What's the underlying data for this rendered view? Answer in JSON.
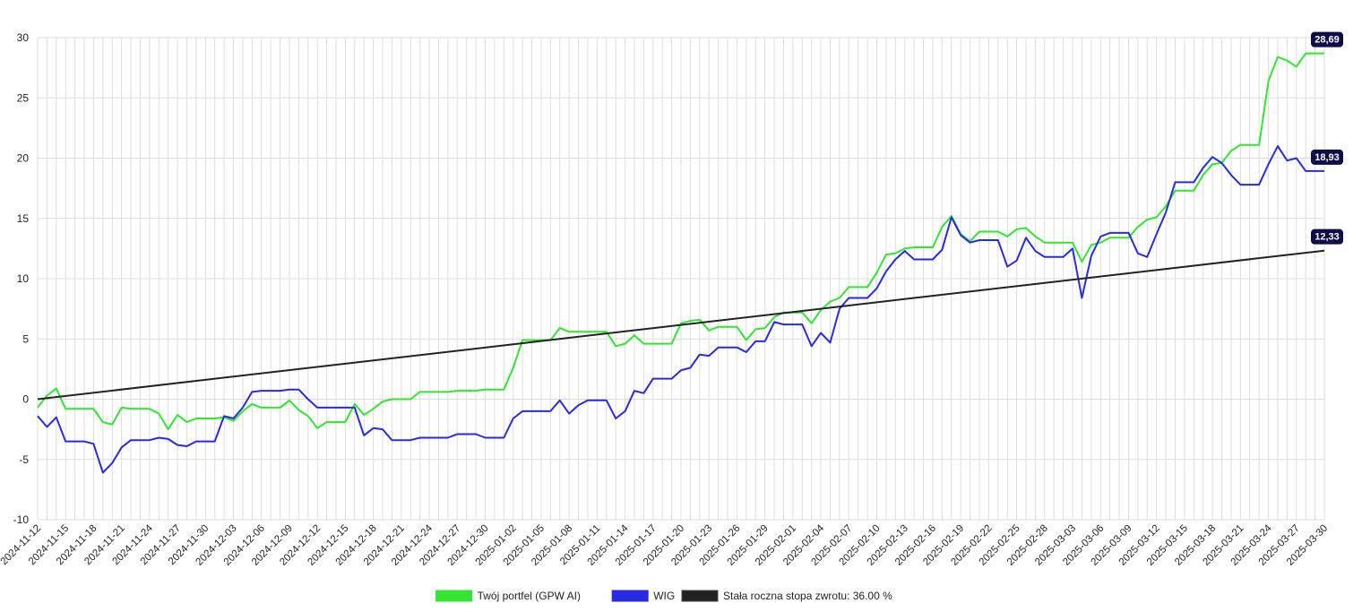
{
  "chart_data": {
    "type": "line",
    "title": "",
    "xlabel": "",
    "ylabel": "",
    "ylim": [
      -10,
      30
    ],
    "y_ticks": [
      -10,
      -5,
      0,
      5,
      10,
      15,
      20,
      25,
      30
    ],
    "y_tick_labels": [
      "-10",
      "-5",
      "0",
      "5",
      "10",
      "15",
      "20",
      "25",
      "30"
    ],
    "x_range": [
      "2024-11-12",
      "2025-03-30"
    ],
    "x_tick_labels": [
      "2024-11-12",
      "2024-11-15",
      "2024-11-18",
      "2024-11-21",
      "2024-11-24",
      "2024-11-27",
      "2024-11-30",
      "2024-12-03",
      "2024-12-06",
      "2024-12-09",
      "2024-12-12",
      "2024-12-15",
      "2024-12-18",
      "2024-12-21",
      "2024-12-24",
      "2024-12-27",
      "2024-12-30",
      "2025-01-02",
      "2025-01-05",
      "2025-01-08",
      "2025-01-11",
      "2025-01-14",
      "2025-01-17",
      "2025-01-20",
      "2025-01-23",
      "2025-01-26",
      "2025-01-29",
      "2025-02-01",
      "2025-02-04",
      "2025-02-07",
      "2025-02-10",
      "2025-02-13",
      "2025-02-16",
      "2025-02-19",
      "2025-02-22",
      "2025-02-25",
      "2025-02-28",
      "2025-03-03",
      "2025-03-06",
      "2025-03-09",
      "2025-03-12",
      "2025-03-15",
      "2025-03-18",
      "2025-03-21",
      "2025-03-24",
      "2025-03-27",
      "2025-03-30"
    ],
    "grid": true,
    "legend_position": "bottom",
    "series": [
      {
        "name": "Twój portfel (GPW AI)",
        "color": "#33e433",
        "end_label": "28,69",
        "x": [
          "2024-11-12",
          "2024-11-13",
          "2024-11-14",
          "2024-11-15",
          "2024-11-16",
          "2024-11-17",
          "2024-11-18",
          "2024-11-19",
          "2024-11-20",
          "2024-11-21",
          "2024-11-22",
          "2024-11-23",
          "2024-11-24",
          "2024-11-25",
          "2024-11-26",
          "2024-11-27",
          "2024-11-28",
          "2024-11-29",
          "2024-11-30",
          "2024-12-01",
          "2024-12-02",
          "2024-12-03",
          "2024-12-04",
          "2024-12-05",
          "2024-12-06",
          "2024-12-07",
          "2024-12-08",
          "2024-12-09",
          "2024-12-10",
          "2024-12-11",
          "2024-12-12",
          "2024-12-13",
          "2024-12-14",
          "2024-12-15",
          "2024-12-16",
          "2024-12-17",
          "2024-12-18",
          "2024-12-19",
          "2024-12-20",
          "2024-12-21",
          "2024-12-22",
          "2024-12-23",
          "2024-12-24",
          "2024-12-25",
          "2024-12-26",
          "2024-12-27",
          "2024-12-28",
          "2024-12-29",
          "2024-12-30",
          "2024-12-31",
          "2025-01-01",
          "2025-01-02",
          "2025-01-03",
          "2025-01-04",
          "2025-01-05",
          "2025-01-06",
          "2025-01-07",
          "2025-01-08",
          "2025-01-09",
          "2025-01-10",
          "2025-01-11",
          "2025-01-12",
          "2025-01-13",
          "2025-01-14",
          "2025-01-15",
          "2025-01-16",
          "2025-01-17",
          "2025-01-18",
          "2025-01-19",
          "2025-01-20",
          "2025-01-21",
          "2025-01-22",
          "2025-01-23",
          "2025-01-24",
          "2025-01-25",
          "2025-01-26",
          "2025-01-27",
          "2025-01-28",
          "2025-01-29",
          "2025-01-30",
          "2025-01-31",
          "2025-02-01",
          "2025-02-02",
          "2025-02-03",
          "2025-02-04",
          "2025-02-05",
          "2025-02-06",
          "2025-02-07",
          "2025-02-08",
          "2025-02-09",
          "2025-02-10",
          "2025-02-11",
          "2025-02-12",
          "2025-02-13",
          "2025-02-14",
          "2025-02-15",
          "2025-02-16",
          "2025-02-17",
          "2025-02-18",
          "2025-02-19",
          "2025-02-20",
          "2025-02-21",
          "2025-02-22",
          "2025-02-23",
          "2025-02-24",
          "2025-02-25",
          "2025-02-26",
          "2025-02-27",
          "2025-02-28",
          "2025-03-01",
          "2025-03-02",
          "2025-03-03",
          "2025-03-04",
          "2025-03-05",
          "2025-03-06",
          "2025-03-07",
          "2025-03-08",
          "2025-03-09",
          "2025-03-10",
          "2025-03-11",
          "2025-03-12",
          "2025-03-13",
          "2025-03-14",
          "2025-03-15",
          "2025-03-16",
          "2025-03-17",
          "2025-03-18",
          "2025-03-19",
          "2025-03-20",
          "2025-03-21",
          "2025-03-22",
          "2025-03-23",
          "2025-03-24",
          "2025-03-25",
          "2025-03-26",
          "2025-03-27",
          "2025-03-28",
          "2025-03-29",
          "2025-03-30"
        ],
        "y": [
          -0.7,
          0.3,
          0.9,
          -0.8,
          -0.8,
          -0.8,
          -0.8,
          -1.9,
          -2.1,
          -0.7,
          -0.8,
          -0.8,
          -0.8,
          -1.2,
          -2.5,
          -1.3,
          -1.9,
          -1.6,
          -1.6,
          -1.6,
          -1.5,
          -1.8,
          -1.0,
          -0.4,
          -0.7,
          -0.7,
          -0.7,
          -0.1,
          -0.9,
          -1.4,
          -2.4,
          -1.9,
          -1.9,
          -1.9,
          -0.4,
          -1.3,
          -0.8,
          -0.2,
          0.0,
          0.0,
          0.0,
          0.6,
          0.6,
          0.6,
          0.6,
          0.7,
          0.7,
          0.7,
          0.8,
          0.8,
          0.8,
          2.6,
          4.9,
          4.9,
          4.9,
          4.9,
          5.9,
          5.6,
          5.6,
          5.6,
          5.6,
          5.6,
          4.4,
          4.6,
          5.3,
          4.6,
          4.6,
          4.6,
          4.6,
          6.3,
          6.5,
          6.6,
          5.7,
          6.0,
          6.0,
          6.0,
          4.9,
          5.8,
          5.9,
          6.8,
          7.2,
          7.2,
          7.2,
          6.3,
          7.4,
          8.1,
          8.4,
          9.3,
          9.3,
          9.3,
          10.5,
          12.0,
          12.1,
          12.5,
          12.6,
          12.6,
          12.6,
          14.3,
          15.2,
          13.7,
          13.1,
          13.9,
          13.9,
          13.9,
          13.5,
          14.1,
          14.2,
          13.5,
          13.0,
          13.0,
          13.0,
          13.0,
          11.4,
          12.8,
          13.0,
          13.4,
          13.4,
          13.4,
          14.3,
          14.9,
          15.1,
          16.0,
          17.3,
          17.3,
          17.3,
          18.6,
          19.5,
          19.6,
          20.6,
          21.1,
          21.1,
          21.1,
          26.4,
          28.4,
          28.1,
          27.6,
          28.69,
          28.69,
          28.69
        ]
      },
      {
        "name": "WIG",
        "color": "#2a2ae0",
        "end_label": "18,93",
        "x": [
          "2024-11-12",
          "2024-11-13",
          "2024-11-14",
          "2024-11-15",
          "2024-11-16",
          "2024-11-17",
          "2024-11-18",
          "2024-11-19",
          "2024-11-20",
          "2024-11-21",
          "2024-11-22",
          "2024-11-23",
          "2024-11-24",
          "2024-11-25",
          "2024-11-26",
          "2024-11-27",
          "2024-11-28",
          "2024-11-29",
          "2024-11-30",
          "2024-12-01",
          "2024-12-02",
          "2024-12-03",
          "2024-12-04",
          "2024-12-05",
          "2024-12-06",
          "2024-12-07",
          "2024-12-08",
          "2024-12-09",
          "2024-12-10",
          "2024-12-11",
          "2024-12-12",
          "2024-12-13",
          "2024-12-14",
          "2024-12-15",
          "2024-12-16",
          "2024-12-17",
          "2024-12-18",
          "2024-12-19",
          "2024-12-20",
          "2024-12-21",
          "2024-12-22",
          "2024-12-23",
          "2024-12-24",
          "2024-12-25",
          "2024-12-26",
          "2024-12-27",
          "2024-12-28",
          "2024-12-29",
          "2024-12-30",
          "2024-12-31",
          "2025-01-01",
          "2025-01-02",
          "2025-01-03",
          "2025-01-04",
          "2025-01-05",
          "2025-01-06",
          "2025-01-07",
          "2025-01-08",
          "2025-01-09",
          "2025-01-10",
          "2025-01-11",
          "2025-01-12",
          "2025-01-13",
          "2025-01-14",
          "2025-01-15",
          "2025-01-16",
          "2025-01-17",
          "2025-01-18",
          "2025-01-19",
          "2025-01-20",
          "2025-01-21",
          "2025-01-22",
          "2025-01-23",
          "2025-01-24",
          "2025-01-25",
          "2025-01-26",
          "2025-01-27",
          "2025-01-28",
          "2025-01-29",
          "2025-01-30",
          "2025-01-31",
          "2025-02-01",
          "2025-02-02",
          "2025-02-03",
          "2025-02-04",
          "2025-02-05",
          "2025-02-06",
          "2025-02-07",
          "2025-02-08",
          "2025-02-09",
          "2025-02-10",
          "2025-02-11",
          "2025-02-12",
          "2025-02-13",
          "2025-02-14",
          "2025-02-15",
          "2025-02-16",
          "2025-02-17",
          "2025-02-18",
          "2025-02-19",
          "2025-02-20",
          "2025-02-21",
          "2025-02-22",
          "2025-02-23",
          "2025-02-24",
          "2025-02-25",
          "2025-02-26",
          "2025-02-27",
          "2025-02-28",
          "2025-03-01",
          "2025-03-02",
          "2025-03-03",
          "2025-03-04",
          "2025-03-05",
          "2025-03-06",
          "2025-03-07",
          "2025-03-08",
          "2025-03-09",
          "2025-03-10",
          "2025-03-11",
          "2025-03-12",
          "2025-03-13",
          "2025-03-14",
          "2025-03-15",
          "2025-03-16",
          "2025-03-17",
          "2025-03-18",
          "2025-03-19",
          "2025-03-20",
          "2025-03-21",
          "2025-03-22",
          "2025-03-23",
          "2025-03-24",
          "2025-03-25",
          "2025-03-26",
          "2025-03-27",
          "2025-03-28",
          "2025-03-29",
          "2025-03-30"
        ],
        "y": [
          -1.4,
          -2.3,
          -1.5,
          -3.5,
          -3.5,
          -3.5,
          -3.7,
          -6.1,
          -5.3,
          -4.0,
          -3.4,
          -3.4,
          -3.4,
          -3.2,
          -3.3,
          -3.8,
          -3.9,
          -3.5,
          -3.5,
          -3.5,
          -1.4,
          -1.6,
          -0.7,
          0.6,
          0.7,
          0.7,
          0.7,
          0.8,
          0.8,
          0.0,
          -0.7,
          -0.7,
          -0.7,
          -0.7,
          -0.7,
          -3.0,
          -2.4,
          -2.5,
          -3.4,
          -3.4,
          -3.4,
          -3.2,
          -3.2,
          -3.2,
          -3.2,
          -2.9,
          -2.9,
          -2.9,
          -3.2,
          -3.2,
          -3.2,
          -1.6,
          -1.0,
          -1.0,
          -1.0,
          -1.0,
          -0.1,
          -1.2,
          -0.5,
          -0.1,
          -0.1,
          -0.1,
          -1.6,
          -1.0,
          0.7,
          0.5,
          1.7,
          1.7,
          1.7,
          2.4,
          2.6,
          3.7,
          3.6,
          4.3,
          4.3,
          4.3,
          3.9,
          4.8,
          4.8,
          6.4,
          6.2,
          6.2,
          6.2,
          4.4,
          5.5,
          4.7,
          7.5,
          8.4,
          8.4,
          8.4,
          9.2,
          10.6,
          11.6,
          12.3,
          11.6,
          11.6,
          11.6,
          12.4,
          15.1,
          13.6,
          13.0,
          13.2,
          13.2,
          13.2,
          11.0,
          11.5,
          13.4,
          12.3,
          11.8,
          11.8,
          11.8,
          12.5,
          8.4,
          11.9,
          13.5,
          13.8,
          13.8,
          13.8,
          12.1,
          11.8,
          13.7,
          15.5,
          18.0,
          18.0,
          18.0,
          19.2,
          20.1,
          19.6,
          18.6,
          17.8,
          17.8,
          17.8,
          19.5,
          21.0,
          19.8,
          20.0,
          18.93,
          18.93,
          18.93
        ]
      },
      {
        "name": "Stała roczna stopa zwrotu: 36.00 %",
        "color": "#222222",
        "end_label": "12,33",
        "x": [
          "2024-11-12",
          "2025-03-30"
        ],
        "y": [
          0.0,
          12.33
        ]
      }
    ]
  }
}
